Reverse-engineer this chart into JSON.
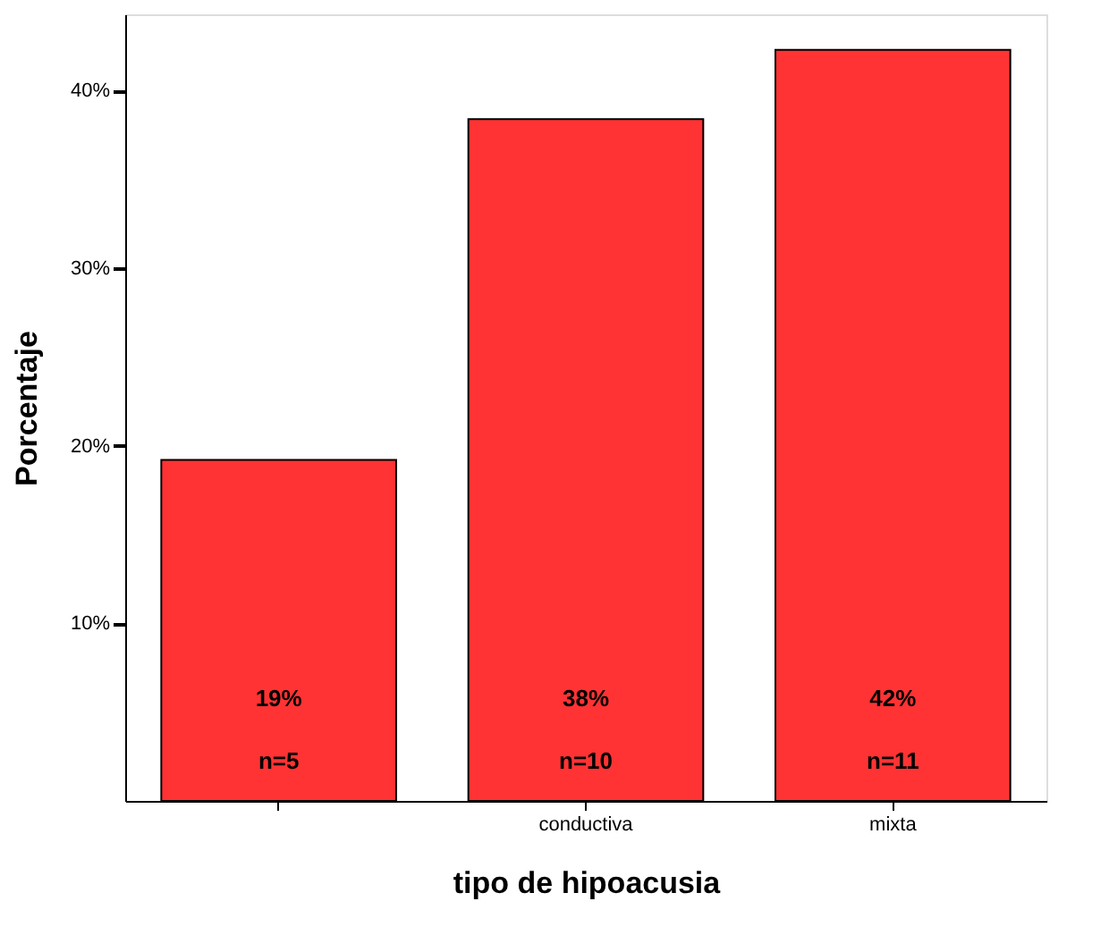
{
  "chart_data": {
    "type": "bar",
    "xlabel": "tipo de hipoacusia",
    "ylabel": "Porcentaje",
    "categories": [
      null,
      "conductiva",
      "mixta"
    ],
    "values": [
      19.2,
      38.4,
      42.3
    ],
    "color": "#ff3333",
    "value_labels": [
      "19%",
      "38%",
      "42%"
    ],
    "annotations": [
      "n=5",
      "n=10",
      "n=11"
    ],
    "ylim": [
      0,
      44.3
    ],
    "yticks": [
      {
        "value": 10,
        "label": "10%"
      },
      {
        "value": 20,
        "label": "20%"
      },
      {
        "value": 30,
        "label": "30%"
      },
      {
        "value": 40,
        "label": "40%"
      }
    ],
    "grid": false
  }
}
